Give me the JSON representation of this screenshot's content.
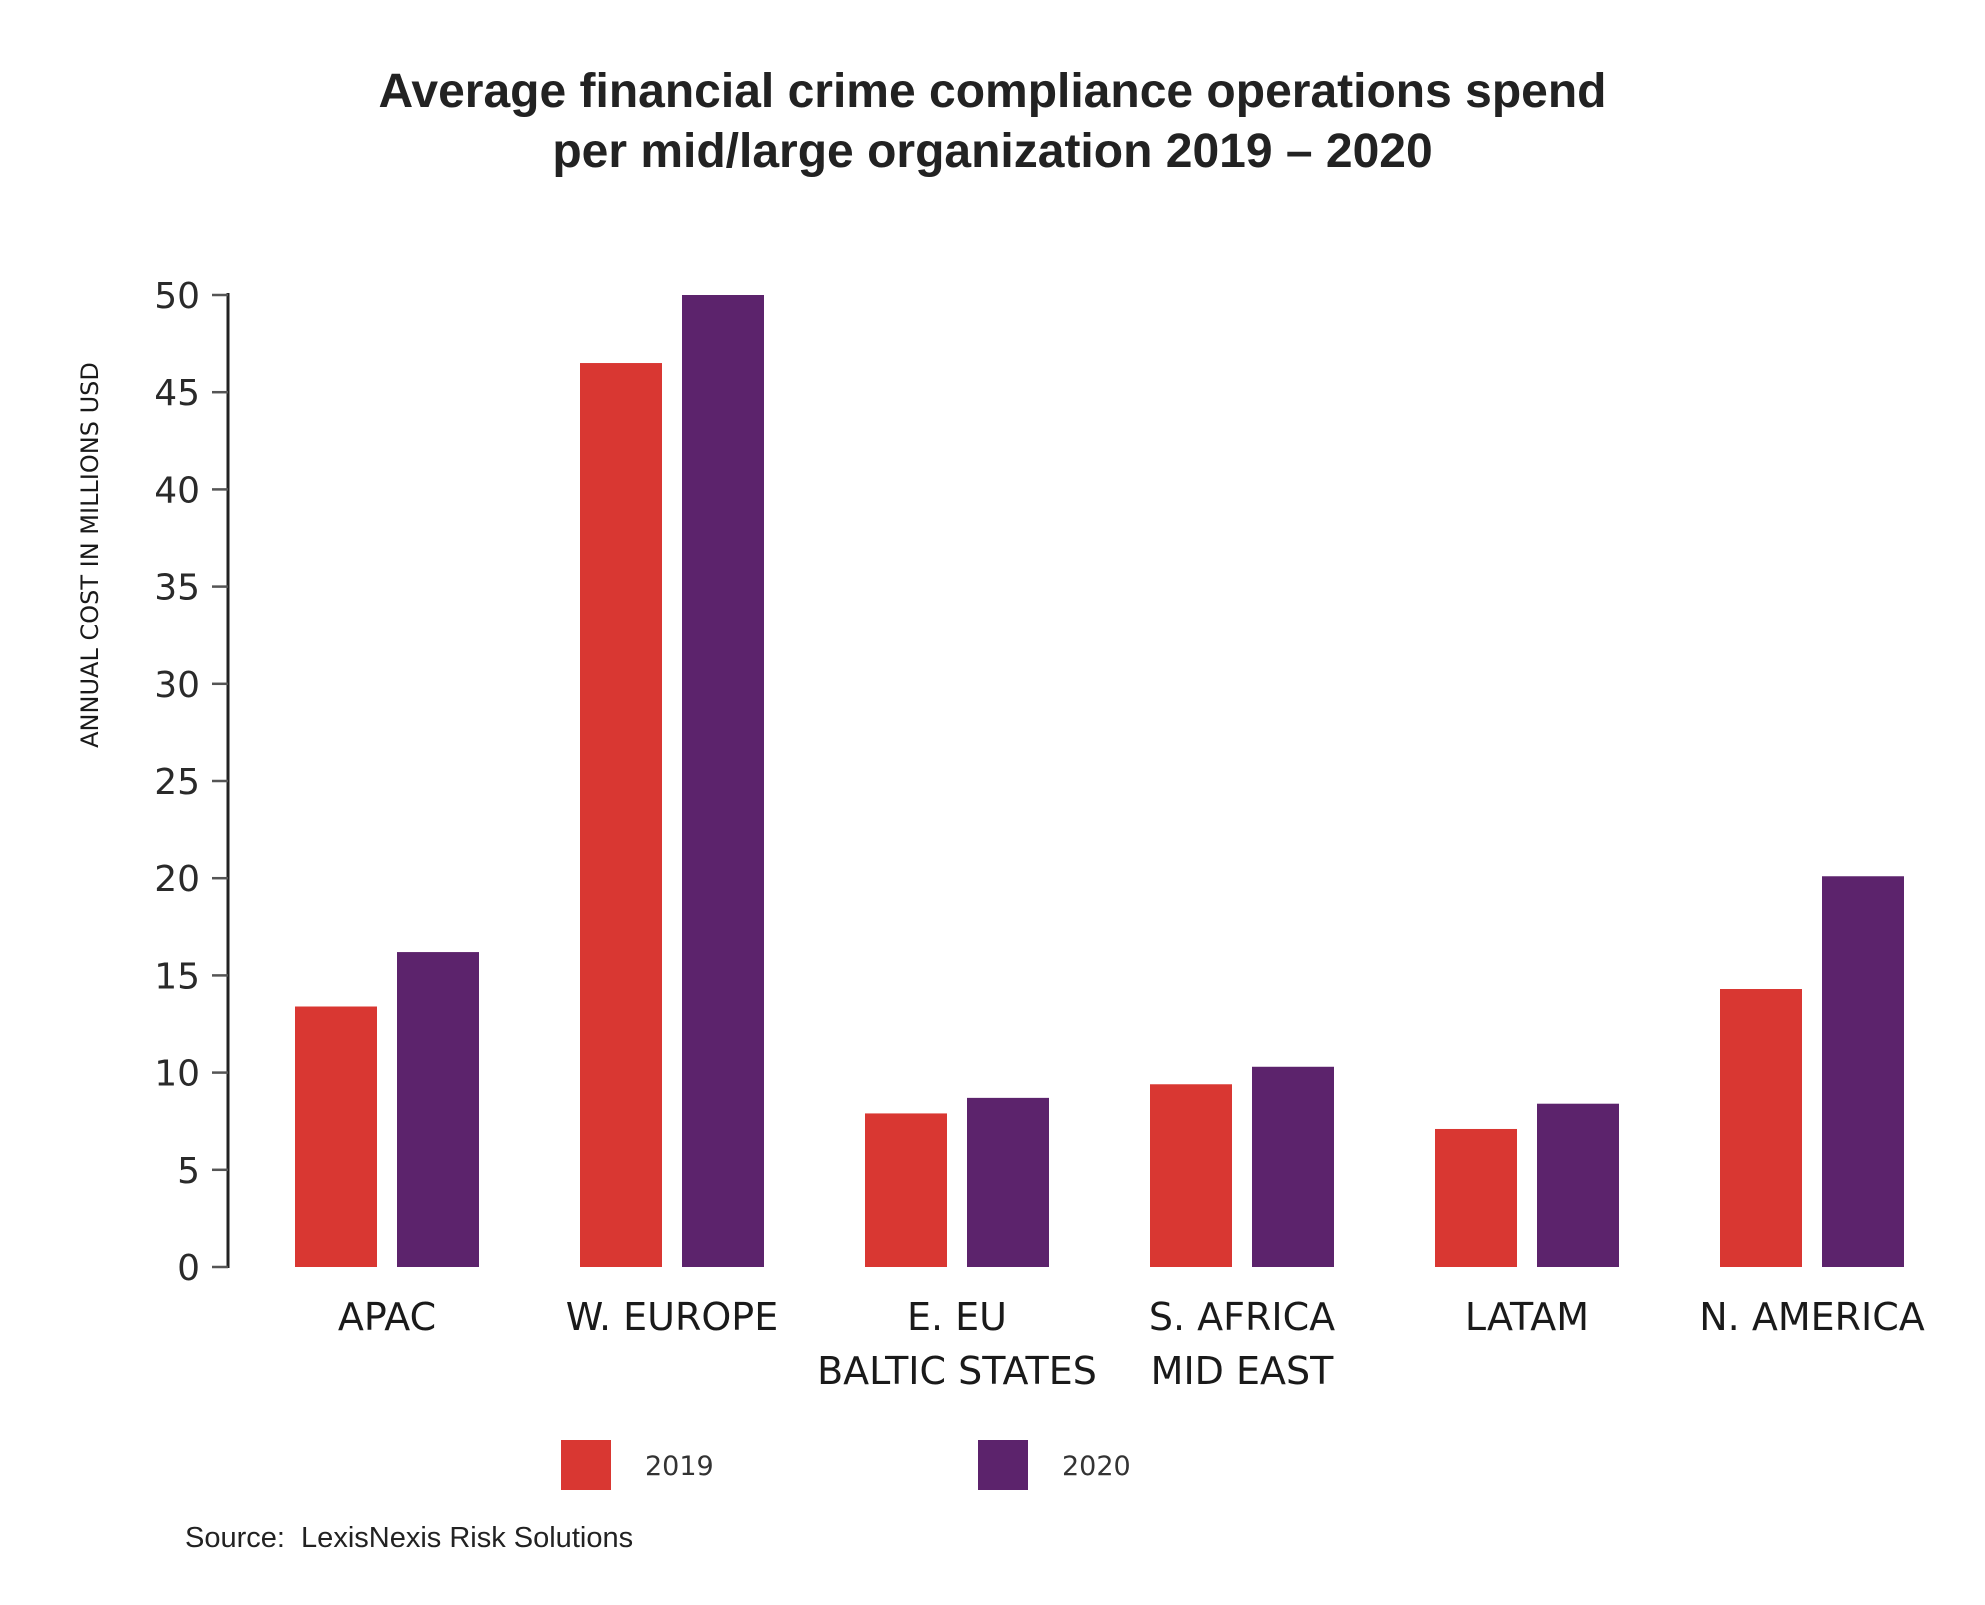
{
  "chart_data": {
    "type": "bar",
    "title_lines": [
      "Average financial crime compliance operations spend",
      "per mid/large organization 2019 – 2020"
    ],
    "ylabel": "ANNUAL COST IN MILLIONS USD",
    "xlabel": "",
    "ylim": [
      0,
      50
    ],
    "yticks": [
      0,
      5,
      10,
      15,
      20,
      25,
      30,
      35,
      40,
      45,
      50
    ],
    "categories": [
      [
        "APAC"
      ],
      [
        "W. EUROPE"
      ],
      [
        "E. EU",
        "BALTIC STATES"
      ],
      [
        "S. AFRICA",
        "MID EAST"
      ],
      [
        "LATAM"
      ],
      [
        "N. AMERICA"
      ]
    ],
    "series": [
      {
        "name": "2019",
        "color": "#d93732",
        "values": [
          13.4,
          46.5,
          7.9,
          9.4,
          7.1,
          14.3
        ]
      },
      {
        "name": "2020",
        "color": "#5c236c",
        "values": [
          16.2,
          50.0,
          8.7,
          10.3,
          8.4,
          20.1
        ]
      }
    ],
    "legend_position": "bottom",
    "grid": false
  },
  "source": "Source:  LexisNexis Risk Solutions"
}
